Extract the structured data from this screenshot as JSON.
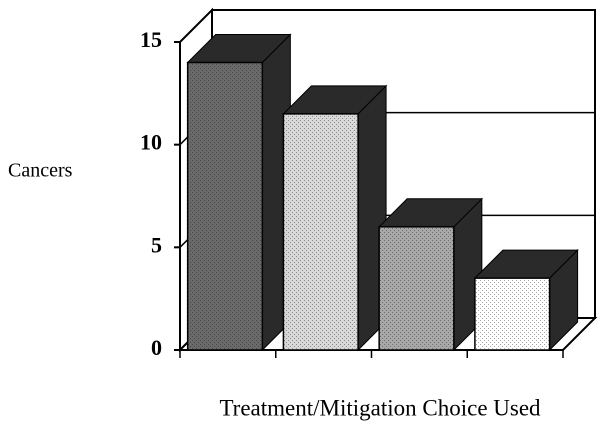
{
  "chart_data": {
    "type": "bar3d",
    "categories": [
      null,
      null,
      null,
      null
    ],
    "values": [
      14,
      11.5,
      6,
      3.5
    ],
    "colors": [
      "#6a6a6a",
      "#d8d8d8",
      "#a8a8a8",
      "#ffffff"
    ],
    "side_color": "#2a2a2a",
    "ylabel": "Cancers",
    "xlabel": "Treatment/Mitigation Choice Used",
    "ylim": [
      0,
      15
    ],
    "yticks": [
      0,
      5,
      10,
      15
    ],
    "grid": true
  }
}
